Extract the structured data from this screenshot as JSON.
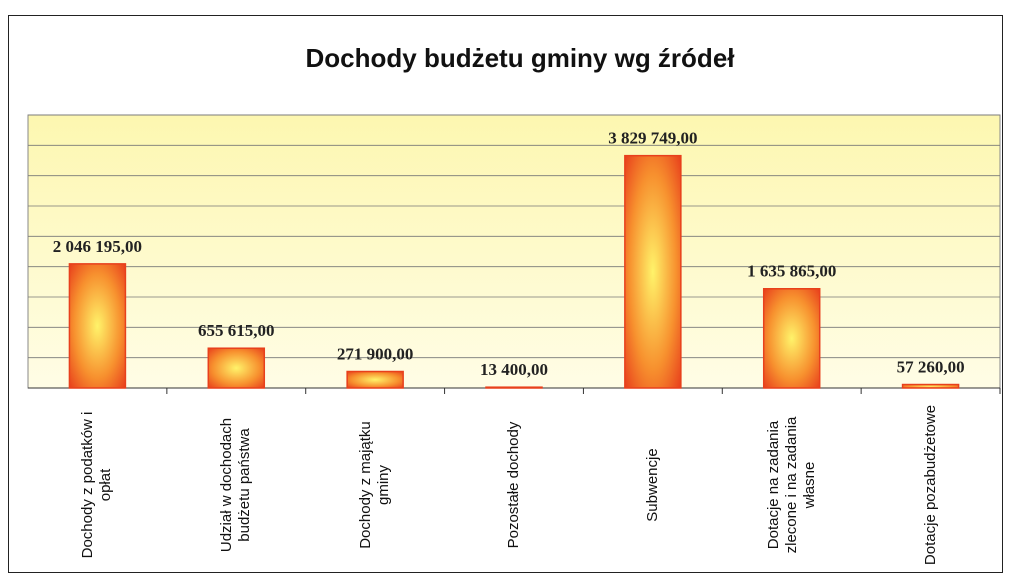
{
  "chart_data": {
    "type": "bar",
    "title": "Dochody budżetu gminy wg źródeł",
    "categories": [
      "Dochody z podatków i opłat",
      "Udział w dochodach budżetu państwa",
      "Dochody z majątku gminy",
      "Pozostałe dochody",
      "Subwencje",
      "Dotacje na zadania zlecone i na zadania własne",
      "Dotacje pozabudżetowe"
    ],
    "values": [
      2046195,
      655615,
      271900,
      13400,
      3829749,
      1635865,
      57260
    ],
    "value_labels": [
      "2 046 195,00",
      "655 615,00",
      "271 900,00",
      "13 400,00",
      "3 829 749,00",
      "1 635 865,00",
      "57 260,00"
    ],
    "color": "#e8401c",
    "ylim": [
      0,
      4500000
    ],
    "yticks": [
      0,
      500000,
      1000000,
      1500000,
      2000000,
      2500000,
      3000000,
      3500000,
      4000000,
      4500000
    ],
    "grid": true
  }
}
